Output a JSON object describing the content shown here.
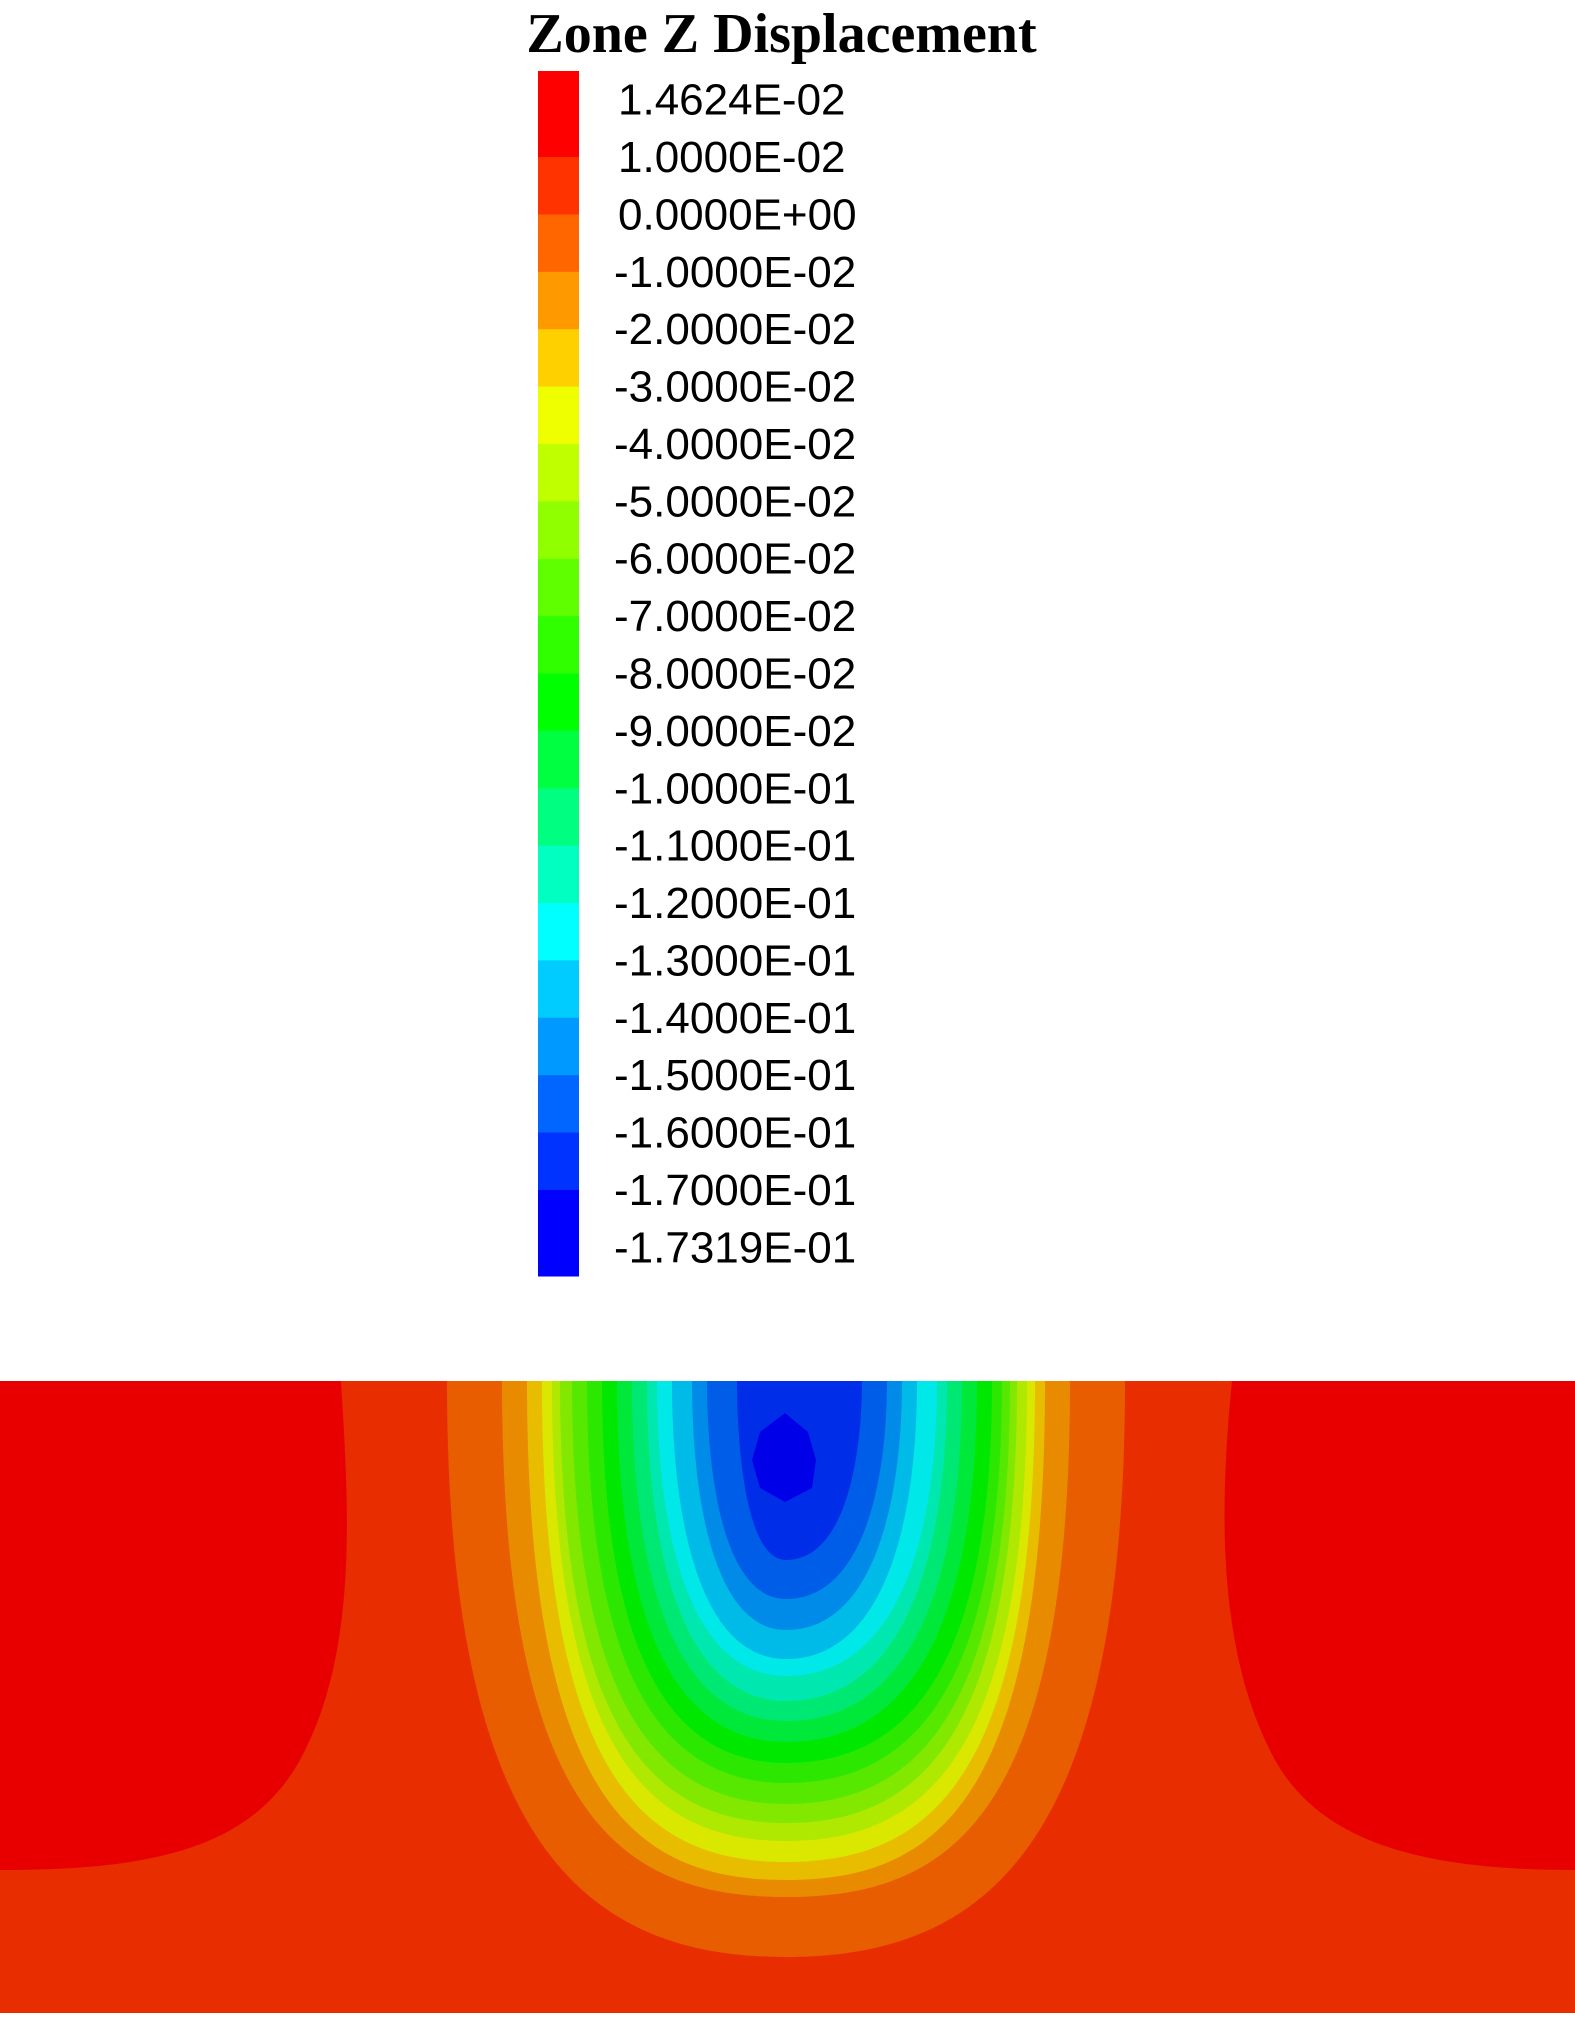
{
  "chart_data": {
    "type": "heatmap",
    "title": "Zone Z Displacement",
    "legend": {
      "placement": "top",
      "labels": [
        "1.4624E-02",
        "1.0000E-02",
        "0.0000E+00",
        "-1.0000E-02",
        "-2.0000E-02",
        "-3.0000E-02",
        "-4.0000E-02",
        "-5.0000E-02",
        "-6.0000E-02",
        "-7.0000E-02",
        "-8.0000E-02",
        "-9.0000E-02",
        "-1.0000E-01",
        "-1.1000E-01",
        "-1.2000E-01",
        "-1.3000E-01",
        "-1.4000E-01",
        "-1.5000E-01",
        "-1.6000E-01",
        "-1.7000E-01",
        "-1.7319E-01"
      ],
      "levels": [
        0.014624,
        0.01,
        0,
        -0.01,
        -0.02,
        -0.03,
        -0.04,
        -0.05,
        -0.06,
        -0.07,
        -0.08,
        -0.09,
        -0.1,
        -0.11,
        -0.12,
        -0.13,
        -0.14,
        -0.15,
        -0.16,
        -0.17,
        -0.17319
      ],
      "band_colors": [
        "#ff0000",
        "#ff3300",
        "#ff6600",
        "#ff9900",
        "#ffd000",
        "#f0ff00",
        "#c0ff00",
        "#90ff00",
        "#60ff00",
        "#30ff00",
        "#00ff00",
        "#00ff40",
        "#00ff80",
        "#00ffc0",
        "#00ffff",
        "#00ccff",
        "#0099ff",
        "#0066ff",
        "#0033ff",
        "#0000ff"
      ]
    },
    "value_range": [
      -0.17319,
      0.014624
    ],
    "grid": false
  }
}
